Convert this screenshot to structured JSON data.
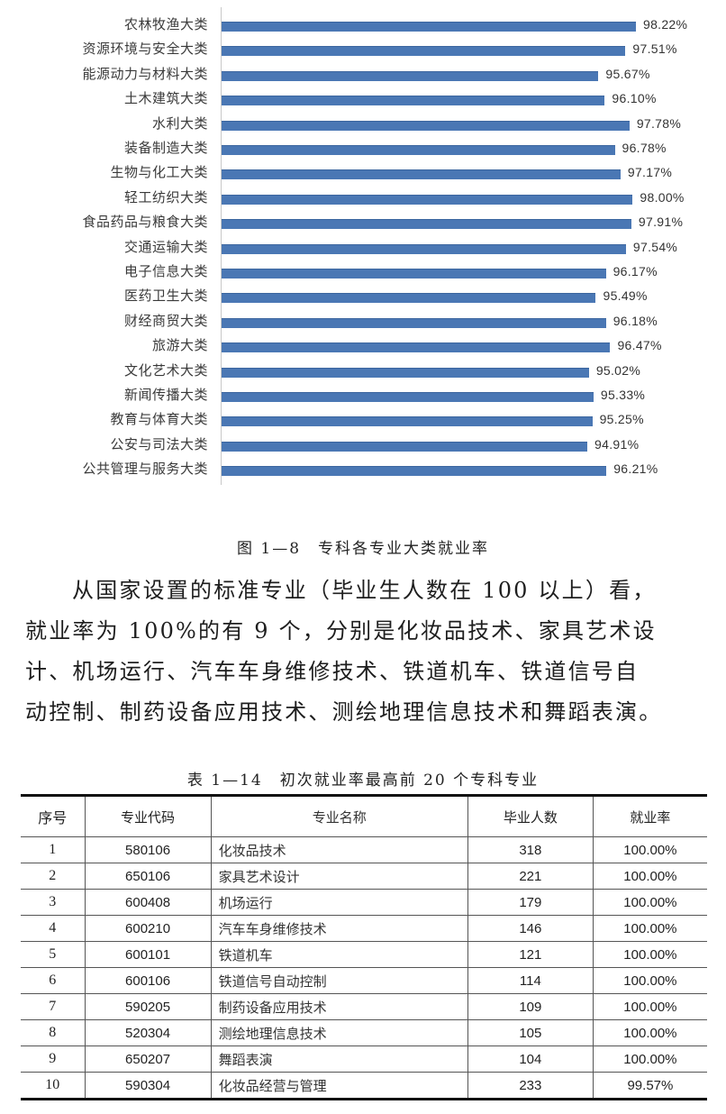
{
  "chart_data": {
    "type": "bar",
    "orientation": "horizontal",
    "title": "图 1—8 专科各专业大类就业率",
    "xlabel": "",
    "ylabel": "",
    "xlim": [
      70,
      100
    ],
    "grid": false,
    "legend": null,
    "bar_color": "#4a77b4",
    "categories": [
      "农林牧渔大类",
      "资源环境与安全大类",
      "能源动力与材料大类",
      "土木建筑大类",
      "水利大类",
      "装备制造大类",
      "生物与化工大类",
      "轻工纺织大类",
      "食品药品与粮食大类",
      "交通运输大类",
      "电子信息大类",
      "医药卫生大类",
      "财经商贸大类",
      "旅游大类",
      "文化艺术大类",
      "新闻传播大类",
      "教育与体育大类",
      "公安与司法大类",
      "公共管理与服务大类"
    ],
    "values": [
      98.22,
      97.51,
      95.67,
      96.1,
      97.78,
      96.78,
      97.17,
      98.0,
      97.91,
      97.54,
      96.17,
      95.49,
      96.18,
      96.47,
      95.02,
      95.33,
      95.25,
      94.91,
      96.21
    ],
    "value_labels": [
      "98.22%",
      "97.51%",
      "95.67%",
      "96.10%",
      "97.78%",
      "96.78%",
      "97.17%",
      "98.00%",
      "97.91%",
      "97.54%",
      "96.17%",
      "95.49%",
      "96.18%",
      "96.47%",
      "95.02%",
      "95.33%",
      "95.25%",
      "94.91%",
      "96.21%"
    ]
  },
  "figure_caption": "图 1—8　专科各专业大类就业率",
  "paragraph": {
    "lines": [
      "从国家设置的标准专业（毕业生人数在 100 以上）看，",
      "就业率为 100%的有 9 个，分别是化妆品技术、家具艺术设",
      "计、机场运行、汽车车身维修技术、铁道机车、铁道信号自",
      "动控制、制药设备应用技术、测绘地理信息技术和舞蹈表演。"
    ]
  },
  "table_caption": "表 1—14　初次就业率最高前 20 个专科专业",
  "table": {
    "headers": [
      "序号",
      "专业代码",
      "专业名称",
      "毕业人数",
      "就业率"
    ],
    "rows": [
      [
        "1",
        "580106",
        "化妆品技术",
        "318",
        "100.00%"
      ],
      [
        "2",
        "650106",
        "家具艺术设计",
        "221",
        "100.00%"
      ],
      [
        "3",
        "600408",
        "机场运行",
        "179",
        "100.00%"
      ],
      [
        "4",
        "600210",
        "汽车车身维修技术",
        "146",
        "100.00%"
      ],
      [
        "5",
        "600101",
        "铁道机车",
        "121",
        "100.00%"
      ],
      [
        "6",
        "600106",
        "铁道信号自动控制",
        "114",
        "100.00%"
      ],
      [
        "7",
        "590205",
        "制药设备应用技术",
        "109",
        "100.00%"
      ],
      [
        "8",
        "520304",
        "测绘地理信息技术",
        "105",
        "100.00%"
      ],
      [
        "9",
        "650207",
        "舞蹈表演",
        "104",
        "100.00%"
      ],
      [
        "10",
        "590304",
        "化妆品经营与管理",
        "233",
        "99.57%"
      ]
    ]
  }
}
